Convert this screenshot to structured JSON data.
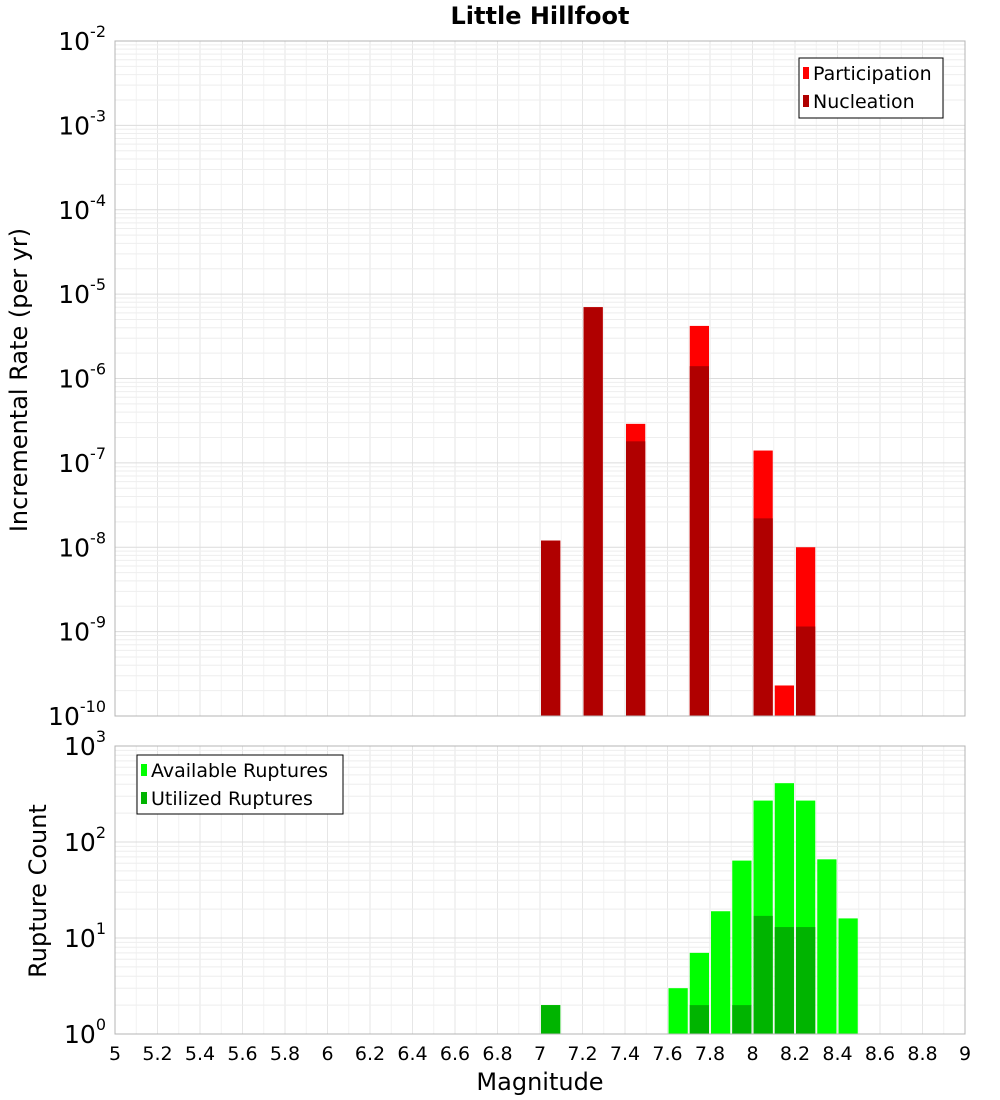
{
  "chart_data": [
    {
      "type": "bar",
      "title": "Little Hillfoot",
      "xlabel": "",
      "ylabel": "Incremental Rate (per yr)",
      "yscale": "log",
      "ylim_exponent": [
        -10,
        -2
      ],
      "xlim": [
        5,
        9
      ],
      "bin_width": 0.1,
      "grid": true,
      "legend": "top-right",
      "series": [
        {
          "name": "Participation",
          "color": "#ff0000",
          "points": [
            {
              "x": 7.05,
              "y": 1.2e-08
            },
            {
              "x": 7.25,
              "y": 7e-06
            },
            {
              "x": 7.45,
              "y": 2.9e-07
            },
            {
              "x": 7.75,
              "y": 4.2e-06
            },
            {
              "x": 8.05,
              "y": 1.4e-07
            },
            {
              "x": 8.15,
              "y": 2.3e-10
            },
            {
              "x": 8.25,
              "y": 1e-08
            }
          ]
        },
        {
          "name": "Nucleation",
          "color": "#b00000",
          "points": [
            {
              "x": 7.05,
              "y": 1.2e-08
            },
            {
              "x": 7.25,
              "y": 7e-06
            },
            {
              "x": 7.45,
              "y": 1.8e-07
            },
            {
              "x": 7.75,
              "y": 1.4e-06
            },
            {
              "x": 8.05,
              "y": 2.2e-08
            },
            {
              "x": 8.25,
              "y": 1.15e-09
            }
          ]
        }
      ]
    },
    {
      "type": "bar",
      "title": "",
      "xlabel": "Magnitude",
      "ylabel": "Rupture Count",
      "yscale": "log",
      "ylim_exponent": [
        0,
        3
      ],
      "xlim": [
        5,
        9
      ],
      "bin_width": 0.1,
      "grid": true,
      "legend": "top-left",
      "series": [
        {
          "name": "Available Ruptures",
          "color": "#00ff00",
          "points": [
            {
              "x": 7.05,
              "y": 2
            },
            {
              "x": 7.25,
              "y": 1
            },
            {
              "x": 7.35,
              "y": 1
            },
            {
              "x": 7.45,
              "y": 1
            },
            {
              "x": 7.65,
              "y": 3
            },
            {
              "x": 7.75,
              "y": 7
            },
            {
              "x": 7.85,
              "y": 19
            },
            {
              "x": 7.95,
              "y": 64
            },
            {
              "x": 8.05,
              "y": 270
            },
            {
              "x": 8.15,
              "y": 410
            },
            {
              "x": 8.25,
              "y": 270
            },
            {
              "x": 8.35,
              "y": 66
            },
            {
              "x": 8.45,
              "y": 16
            },
            {
              "x": 8.55,
              "y": 1
            }
          ]
        },
        {
          "name": "Utilized Ruptures",
          "color": "#00b400",
          "points": [
            {
              "x": 7.05,
              "y": 2
            },
            {
              "x": 7.25,
              "y": 1
            },
            {
              "x": 7.45,
              "y": 1
            },
            {
              "x": 7.65,
              "y": 1
            },
            {
              "x": 7.75,
              "y": 2
            },
            {
              "x": 7.95,
              "y": 2
            },
            {
              "x": 8.05,
              "y": 17
            },
            {
              "x": 8.15,
              "y": 13
            },
            {
              "x": 8.25,
              "y": 13
            },
            {
              "x": 8.35,
              "y": 1
            }
          ]
        }
      ]
    }
  ],
  "x_ticks": [
    "5",
    "5.2",
    "5.4",
    "5.6",
    "5.8",
    "6",
    "6.2",
    "6.4",
    "6.6",
    "6.8",
    "7",
    "7.2",
    "7.4",
    "7.6",
    "7.8",
    "8",
    "8.2",
    "8.4",
    "8.6",
    "8.8",
    "9"
  ]
}
